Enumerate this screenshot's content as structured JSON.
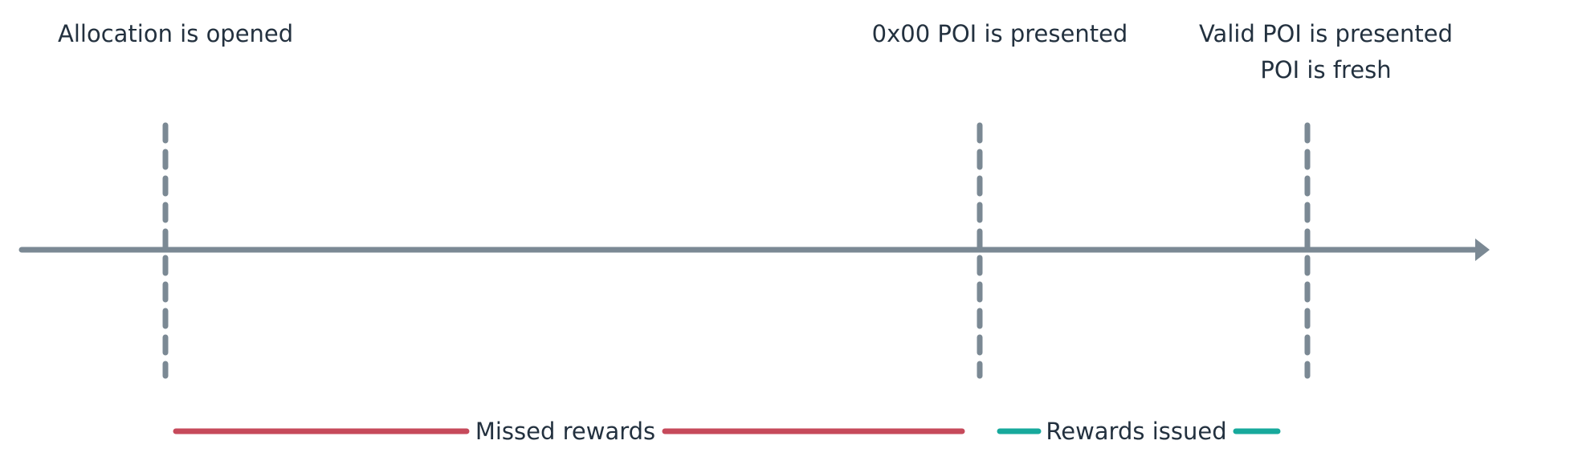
{
  "events": {
    "allocation_opened": "Allocation is opened",
    "zero_poi": "0x00 POI is presented",
    "valid_poi_line1": "Valid POI is presented",
    "valid_poi_line2": "POI is fresh"
  },
  "spans": {
    "missed": {
      "label": "Missed rewards",
      "color": "#c64a5b"
    },
    "issued": {
      "label": "Rewards issued",
      "color": "#17a99c"
    }
  },
  "colors": {
    "axis": "#7b8994",
    "text": "#23313f"
  }
}
